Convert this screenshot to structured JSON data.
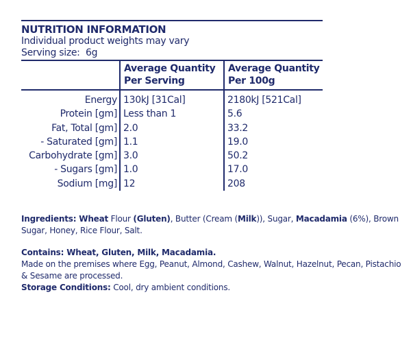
{
  "header": {
    "title": "NUTRITION INFORMATION",
    "note": "Individual product weights may vary",
    "serving_label": "Serving size:",
    "serving_value": "6g"
  },
  "table": {
    "columns": [
      "",
      "Average Quantity Per Serving",
      "Average Quantity Per 100g"
    ],
    "col1_lines": [
      "Average Quantity",
      "Per Serving"
    ],
    "col2_lines": [
      "Average Quantity",
      "Per 100g"
    ],
    "rows": [
      {
        "label": "Energy",
        "per_serving": "130kJ [31Cal]",
        "per_100g": "2180kJ [521Cal]"
      },
      {
        "label": "Protein [gm]",
        "per_serving": "Less than 1",
        "per_100g": "5.6"
      },
      {
        "label": "Fat, Total [gm]",
        "per_serving": "2.0",
        "per_100g": "33.2"
      },
      {
        "label": "- Saturated [gm]",
        "per_serving": "1.1",
        "per_100g": "19.0"
      },
      {
        "label": "Carbohydrate [gm]",
        "per_serving": "3.0",
        "per_100g": "50.2"
      },
      {
        "label": "- Sugars [gm]",
        "per_serving": "1.0",
        "per_100g": "17.0"
      },
      {
        "label": "Sodium [mg]",
        "per_serving": "12",
        "per_100g": "208"
      }
    ]
  },
  "ingredients": [
    {
      "t": "Ingredients: Wheat",
      "b": true
    },
    {
      "t": " Flour ",
      "b": false
    },
    {
      "t": "(Gluten)",
      "b": true
    },
    {
      "t": ", Butter (Cream (",
      "b": false
    },
    {
      "t": "Milk",
      "b": true
    },
    {
      "t": ")), Sugar, ",
      "b": false
    },
    {
      "t": "Macadamia",
      "b": true
    },
    {
      "t": " (6%), Brown Sugar, Honey, Rice Flour, Salt.",
      "b": false
    }
  ],
  "contains": "Contains: Wheat, Gluten, Milk, Macadamia.",
  "premises": "Made on the premises where Egg, Peanut, Almond, Cashew, Walnut, Hazelnut, Pecan, Pistachio & Sesame are processed.",
  "storage_label": "Storage Conditions:",
  "storage_value": " Cool, dry ambient conditions.",
  "colors": {
    "ink": "#1f2a6b"
  }
}
